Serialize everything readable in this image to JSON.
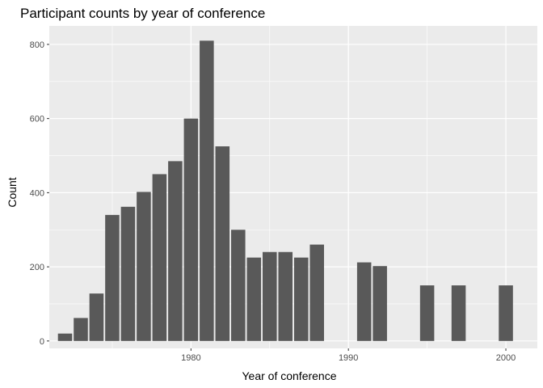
{
  "chart_data": {
    "type": "bar",
    "title": "Participant counts by year of conference",
    "xlabel": "Year of conference",
    "ylabel": "Count",
    "x": [
      1972,
      1973,
      1974,
      1975,
      1976,
      1977,
      1978,
      1979,
      1980,
      1981,
      1982,
      1983,
      1984,
      1985,
      1986,
      1987,
      1988,
      1991,
      1992,
      1995,
      1997,
      2000
    ],
    "values": [
      20,
      62,
      128,
      340,
      362,
      402,
      450,
      485,
      600,
      810,
      525,
      300,
      225,
      240,
      240,
      225,
      260,
      212,
      202,
      150,
      150,
      150
    ],
    "xlim": [
      1971,
      2002
    ],
    "ylim": [
      -20,
      850
    ],
    "x_ticks": [
      1980,
      1990,
      2000
    ],
    "y_ticks": [
      0,
      200,
      400,
      600,
      800
    ],
    "grid": true,
    "colors": {
      "bar": "#595959",
      "panel": "#ebebeb",
      "grid": "#ffffff"
    }
  }
}
